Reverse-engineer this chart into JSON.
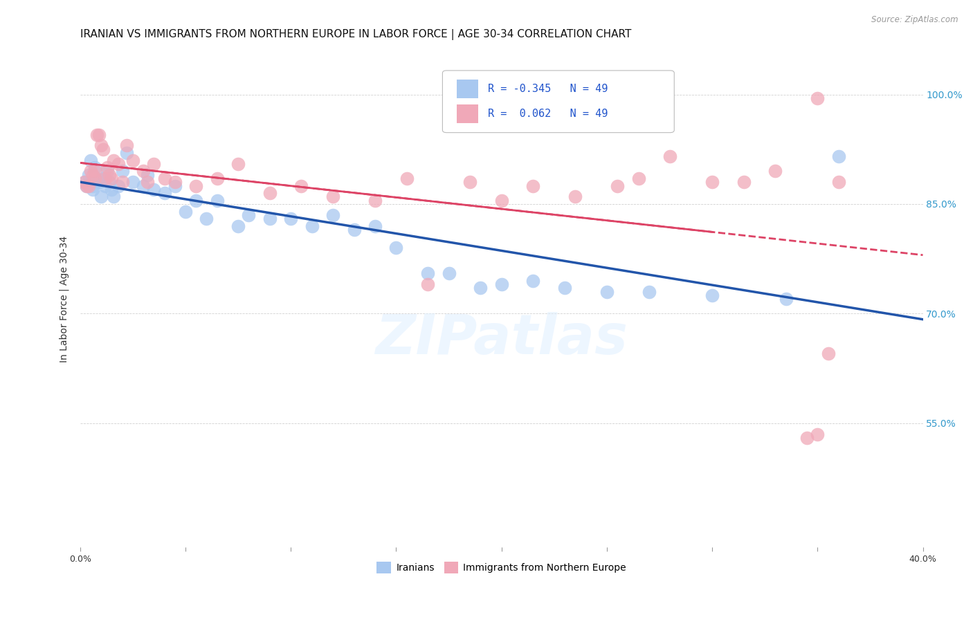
{
  "title": "IRANIAN VS IMMIGRANTS FROM NORTHERN EUROPE IN LABOR FORCE | AGE 30-34 CORRELATION CHART",
  "source": "Source: ZipAtlas.com",
  "ylabel": "In Labor Force | Age 30-34",
  "xlim": [
    0.0,
    0.4
  ],
  "ylim": [
    0.38,
    1.06
  ],
  "x_tick_positions": [
    0.0,
    0.05,
    0.1,
    0.15,
    0.2,
    0.25,
    0.3,
    0.35,
    0.4
  ],
  "x_tick_labels": [
    "0.0%",
    "",
    "",
    "",
    "",
    "",
    "",
    "",
    "40.0%"
  ],
  "y_tick_positions": [
    0.55,
    0.7,
    0.85,
    1.0
  ],
  "y_tick_labels": [
    "55.0%",
    "70.0%",
    "85.0%",
    "100.0%"
  ],
  "watermark": "ZIPatlas",
  "legend_blue_label": "Iranians",
  "legend_pink_label": "Immigrants from Northern Europe",
  "R_blue": -0.345,
  "R_pink": 0.062,
  "N_blue": 49,
  "N_pink": 49,
  "blue_color": "#a8c8f0",
  "pink_color": "#f0a8b8",
  "blue_line_color": "#2255aa",
  "pink_line_color": "#dd4466",
  "iranians_x": [
    0.002,
    0.003,
    0.004,
    0.005,
    0.006,
    0.006,
    0.007,
    0.008,
    0.009,
    0.01,
    0.011,
    0.012,
    0.013,
    0.014,
    0.015,
    0.016,
    0.018,
    0.02,
    0.022,
    0.025,
    0.03,
    0.032,
    0.035,
    0.04,
    0.045,
    0.05,
    0.055,
    0.06,
    0.065,
    0.075,
    0.08,
    0.09,
    0.1,
    0.11,
    0.12,
    0.13,
    0.14,
    0.15,
    0.165,
    0.175,
    0.19,
    0.2,
    0.215,
    0.23,
    0.25,
    0.27,
    0.3,
    0.335,
    0.36
  ],
  "iranians_y": [
    0.88,
    0.875,
    0.89,
    0.91,
    0.875,
    0.87,
    0.9,
    0.885,
    0.88,
    0.86,
    0.885,
    0.875,
    0.895,
    0.88,
    0.87,
    0.86,
    0.875,
    0.895,
    0.92,
    0.88,
    0.875,
    0.89,
    0.87,
    0.865,
    0.875,
    0.84,
    0.855,
    0.83,
    0.855,
    0.82,
    0.835,
    0.83,
    0.83,
    0.82,
    0.835,
    0.815,
    0.82,
    0.79,
    0.755,
    0.755,
    0.735,
    0.74,
    0.745,
    0.735,
    0.73,
    0.73,
    0.725,
    0.72,
    0.915
  ],
  "northern_europe_x": [
    0.002,
    0.003,
    0.004,
    0.005,
    0.006,
    0.007,
    0.007,
    0.008,
    0.009,
    0.01,
    0.011,
    0.012,
    0.013,
    0.014,
    0.015,
    0.016,
    0.018,
    0.02,
    0.022,
    0.025,
    0.03,
    0.032,
    0.035,
    0.04,
    0.045,
    0.055,
    0.065,
    0.075,
    0.09,
    0.105,
    0.12,
    0.14,
    0.155,
    0.165,
    0.185,
    0.2,
    0.215,
    0.235,
    0.255,
    0.265,
    0.28,
    0.3,
    0.315,
    0.33,
    0.345,
    0.35,
    0.355,
    0.36,
    0.35
  ],
  "northern_europe_y": [
    0.88,
    0.875,
    0.875,
    0.895,
    0.89,
    0.885,
    0.895,
    0.945,
    0.945,
    0.93,
    0.925,
    0.885,
    0.9,
    0.89,
    0.885,
    0.91,
    0.905,
    0.88,
    0.93,
    0.91,
    0.895,
    0.88,
    0.905,
    0.885,
    0.88,
    0.875,
    0.885,
    0.905,
    0.865,
    0.875,
    0.86,
    0.855,
    0.885,
    0.74,
    0.88,
    0.855,
    0.875,
    0.86,
    0.875,
    0.885,
    0.915,
    0.88,
    0.88,
    0.895,
    0.53,
    0.535,
    0.645,
    0.88,
    0.995
  ]
}
